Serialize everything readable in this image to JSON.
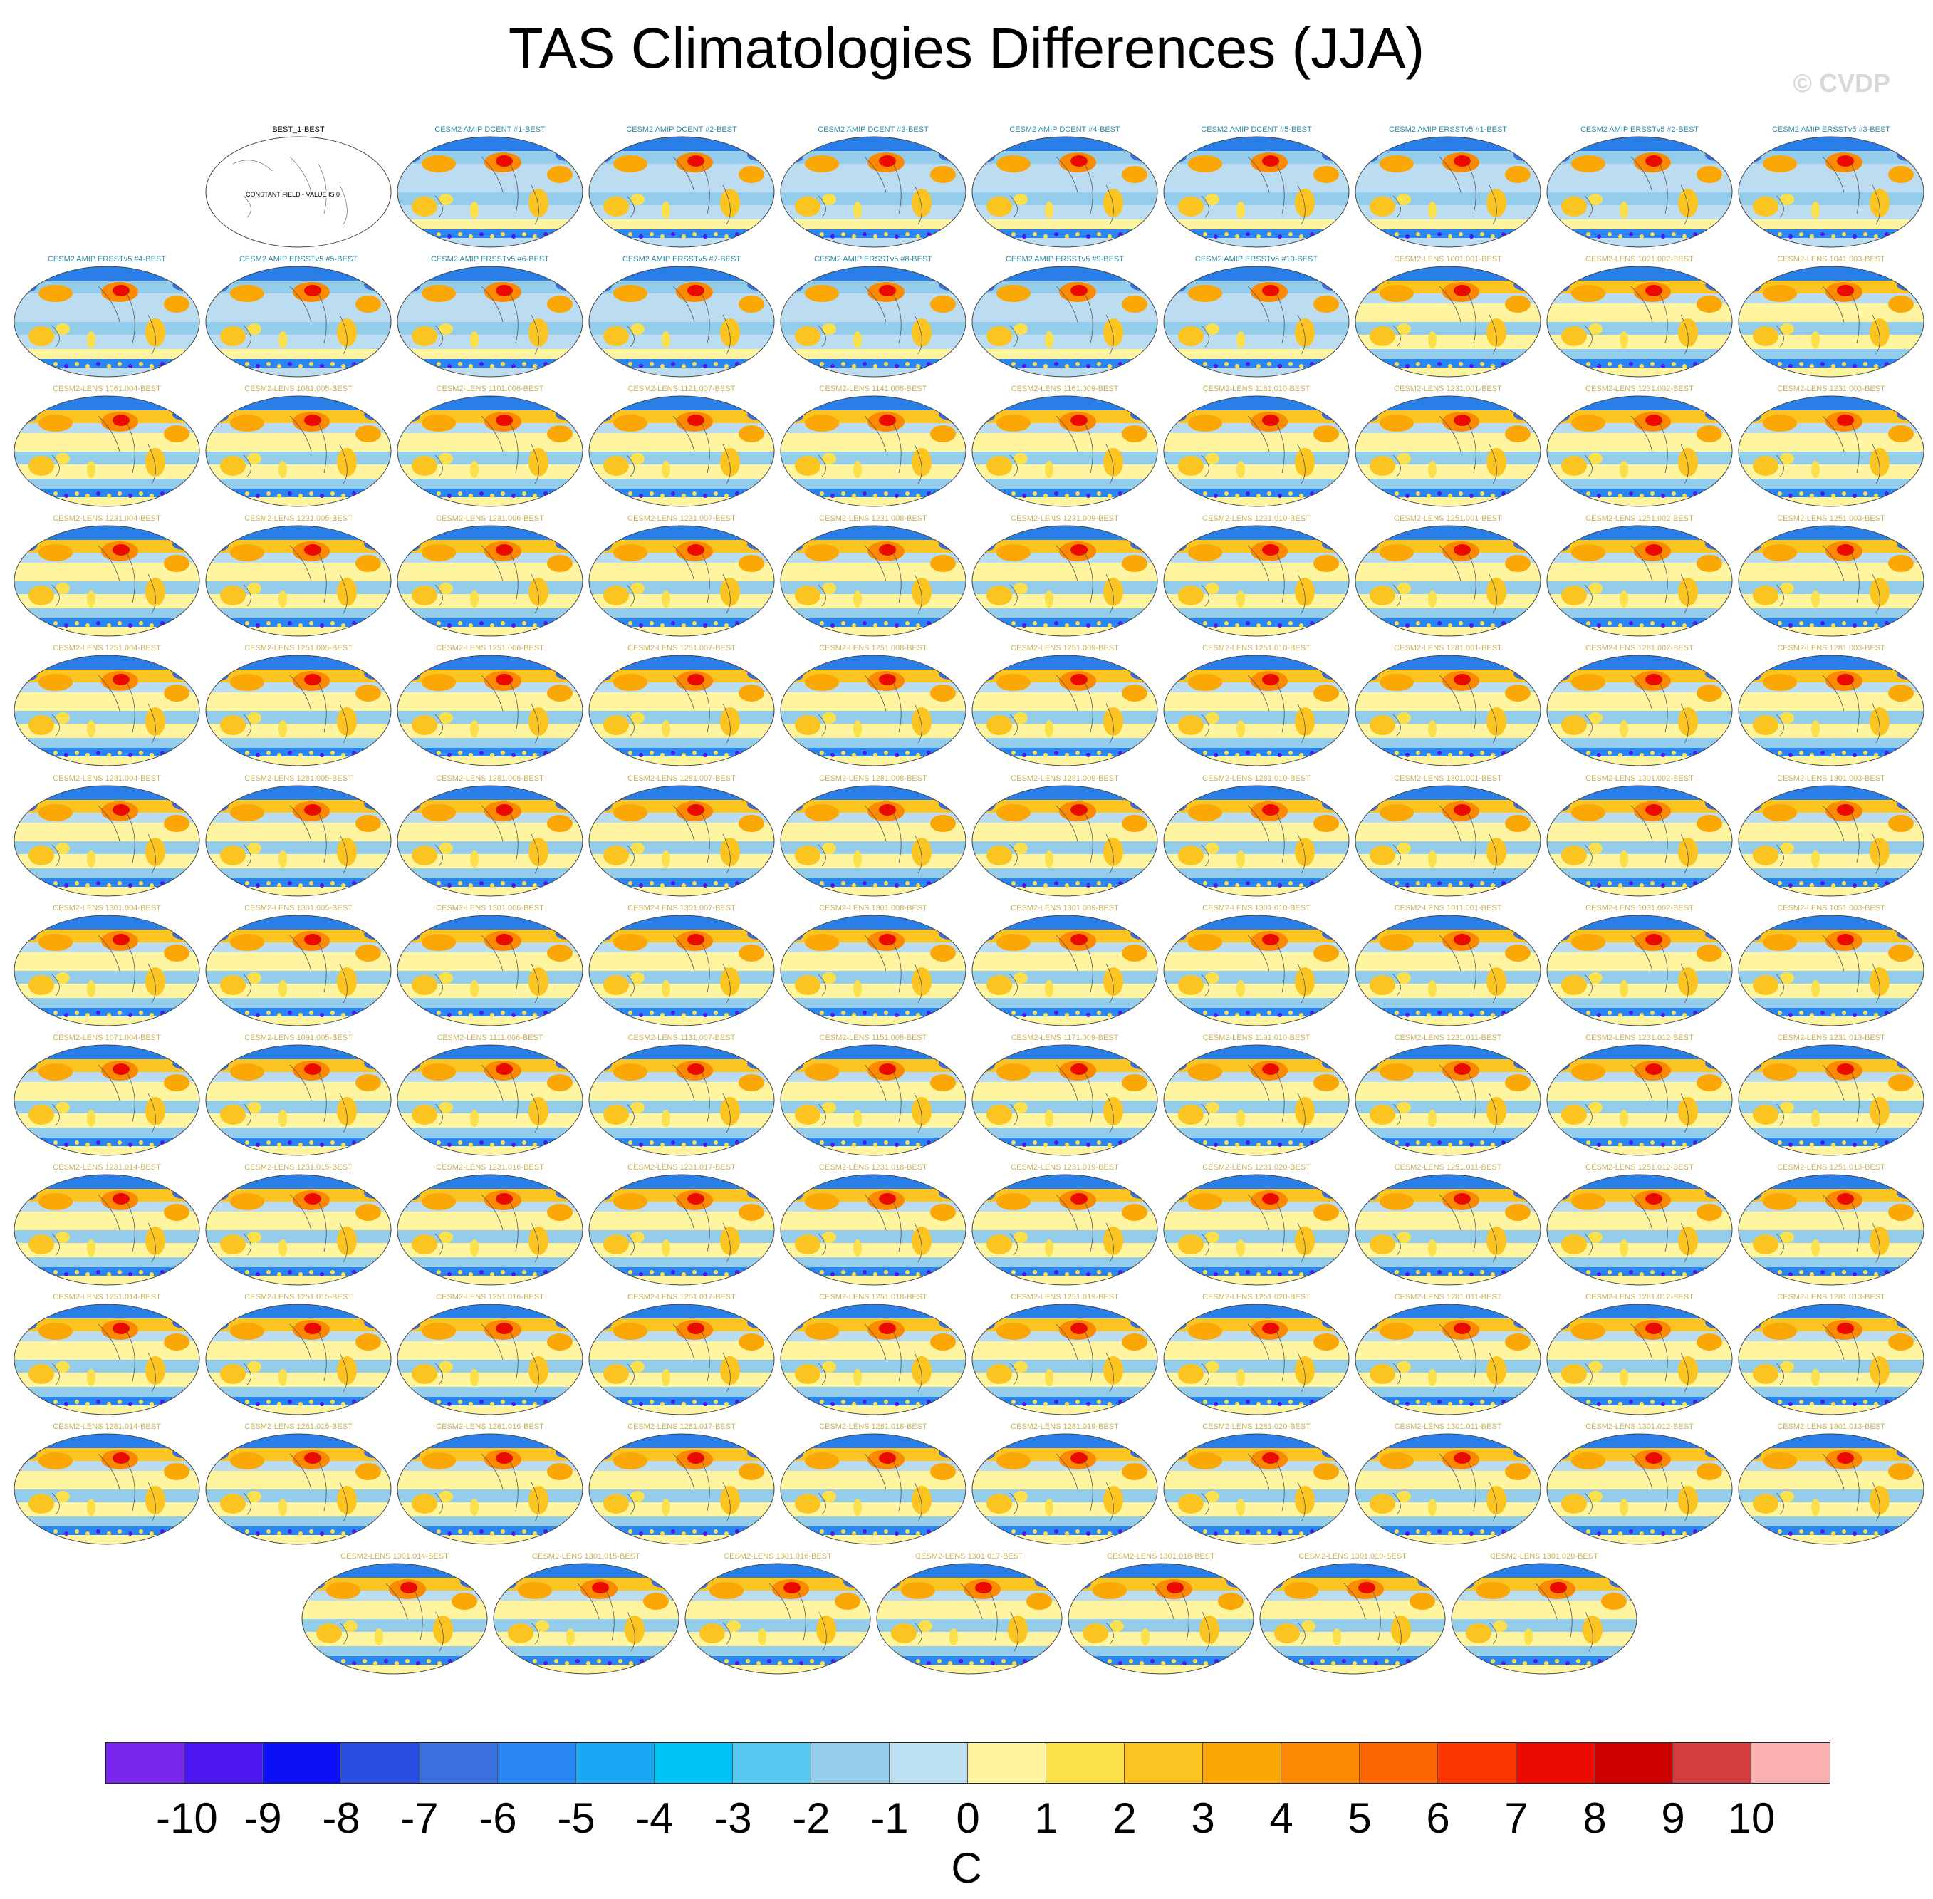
{
  "title": "TAS Climatologies Differences (JJA)",
  "watermark": "© CVDP",
  "reference_panel": {
    "label": "BEST_1-BEST",
    "note": "CONSTANT FIELD - VALUE IS 0"
  },
  "panel_labels": [
    "CESM2 AMIP DCENT #1-BEST",
    "CESM2 AMIP DCENT #2-BEST",
    "CESM2 AMIP DCENT #3-BEST",
    "CESM2 AMIP DCENT #4-BEST",
    "CESM2 AMIP DCENT #5-BEST",
    "CESM2 AMIP ERSSTv5 #1-BEST",
    "CESM2 AMIP ERSSTv5 #2-BEST",
    "CESM2 AMIP ERSSTv5 #3-BEST",
    "CESM2 AMIP ERSSTv5 #4-BEST",
    "CESM2 AMIP ERSSTv5 #5-BEST",
    "CESM2 AMIP ERSSTv5 #6-BEST",
    "CESM2 AMIP ERSSTv5 #7-BEST",
    "CESM2 AMIP ERSSTv5 #8-BEST",
    "CESM2 AMIP ERSSTv5 #9-BEST",
    "CESM2 AMIP ERSSTv5 #10-BEST",
    "CESM2-LENS 1001.001-BEST",
    "CESM2-LENS 1021.002-BEST",
    "CESM2-LENS 1041.003-BEST",
    "CESM2-LENS 1061.004-BEST",
    "CESM2-LENS 1081.005-BEST",
    "CESM2-LENS 1101.006-BEST",
    "CESM2-LENS 1121.007-BEST",
    "CESM2-LENS 1141.008-BEST",
    "CESM2-LENS 1161.009-BEST",
    "CESM2-LENS 1181.010-BEST",
    "CESM2-LENS 1231.001-BEST",
    "CESM2-LENS 1231.002-BEST",
    "CESM2-LENS 1231.003-BEST",
    "CESM2-LENS 1231.004-BEST",
    "CESM2-LENS 1231.005-BEST",
    "CESM2-LENS 1231.006-BEST",
    "CESM2-LENS 1231.007-BEST",
    "CESM2-LENS 1231.008-BEST",
    "CESM2-LENS 1231.009-BEST",
    "CESM2-LENS 1231.010-BEST",
    "CESM2-LENS 1251.001-BEST",
    "CESM2-LENS 1251.002-BEST",
    "CESM2-LENS 1251.003-BEST",
    "CESM2-LENS 1251.004-BEST",
    "CESM2-LENS 1251.005-BEST",
    "CESM2-LENS 1251.006-BEST",
    "CESM2-LENS 1251.007-BEST",
    "CESM2-LENS 1251.008-BEST",
    "CESM2-LENS 1251.009-BEST",
    "CESM2-LENS 1251.010-BEST",
    "CESM2-LENS 1281.001-BEST",
    "CESM2-LENS 1281.002-BEST",
    "CESM2-LENS 1281.003-BEST",
    "CESM2-LENS 1281.004-BEST",
    "CESM2-LENS 1281.005-BEST",
    "CESM2-LENS 1281.006-BEST",
    "CESM2-LENS 1281.007-BEST",
    "CESM2-LENS 1281.008-BEST",
    "CESM2-LENS 1281.009-BEST",
    "CESM2-LENS 1281.010-BEST",
    "CESM2-LENS 1301.001-BEST",
    "CESM2-LENS 1301.002-BEST",
    "CESM2-LENS 1301.003-BEST",
    "CESM2-LENS 1301.004-BEST",
    "CESM2-LENS 1301.005-BEST",
    "CESM2-LENS 1301.006-BEST",
    "CESM2-LENS 1301.007-BEST",
    "CESM2-LENS 1301.008-BEST",
    "CESM2-LENS 1301.009-BEST",
    "CESM2-LENS 1301.010-BEST",
    "CESM2-LENS 1011.001-BEST",
    "CESM2-LENS 1031.002-BEST",
    "CESM2-LENS 1051.003-BEST",
    "CESM2-LENS 1071.004-BEST",
    "CESM2-LENS 1091.005-BEST",
    "CESM2-LENS 1111.006-BEST",
    "CESM2-LENS 1131.007-BEST",
    "CESM2-LENS 1151.008-BEST",
    "CESM2-LENS 1171.009-BEST",
    "CESM2-LENS 1191.010-BEST",
    "CESM2-LENS 1231.011-BEST",
    "CESM2-LENS 1231.012-BEST",
    "CESM2-LENS 1231.013-BEST",
    "CESM2-LENS 1231.014-BEST",
    "CESM2-LENS 1231.015-BEST",
    "CESM2-LENS 1231.016-BEST",
    "CESM2-LENS 1231.017-BEST",
    "CESM2-LENS 1231.018-BEST",
    "CESM2-LENS 1231.019-BEST",
    "CESM2-LENS 1231.020-BEST",
    "CESM2-LENS 1251.011-BEST",
    "CESM2-LENS 1251.012-BEST",
    "CESM2-LENS 1251.013-BEST",
    "CESM2-LENS 1251.014-BEST",
    "CESM2-LENS 1251.015-BEST",
    "CESM2-LENS 1251.016-BEST",
    "CESM2-LENS 1251.017-BEST",
    "CESM2-LENS 1251.018-BEST",
    "CESM2-LENS 1251.019-BEST",
    "CESM2-LENS 1251.020-BEST",
    "CESM2-LENS 1281.011-BEST",
    "CESM2-LENS 1281.012-BEST",
    "CESM2-LENS 1281.013-BEST",
    "CESM2-LENS 1281.014-BEST",
    "CESM2-LENS 1281.015-BEST",
    "CESM2-LENS 1281.016-BEST",
    "CESM2-LENS 1281.017-BEST",
    "CESM2-LENS 1281.018-BEST",
    "CESM2-LENS 1281.019-BEST",
    "CESM2-LENS 1281.020-BEST",
    "CESM2-LENS 1301.011-BEST",
    "CESM2-LENS 1301.012-BEST",
    "CESM2-LENS 1301.013-BEST",
    "CESM2-LENS 1301.014-BEST",
    "CESM2-LENS 1301.015-BEST",
    "CESM2-LENS 1301.016-BEST",
    "CESM2-LENS 1301.017-BEST",
    "CESM2-LENS 1301.018-BEST",
    "CESM2-LENS 1301.019-BEST",
    "CESM2-LENS 1301.020-BEST"
  ],
  "label_colors": {
    "amip": "#2e8ba8",
    "lens": "#c9b25a",
    "reference": "#000000"
  },
  "colorbar": {
    "colors": [
      "#7b26ee",
      "#4d18f0",
      "#0c10f6",
      "#2a4ee2",
      "#3a6fe0",
      "#2a85f5",
      "#19a6f2",
      "#00c4f6",
      "#55c8f0",
      "#93cdeb",
      "#bde0f3",
      "#fff5a0",
      "#fbe04c",
      "#fbc421",
      "#fba705",
      "#fb8a00",
      "#fb6600",
      "#fb3600",
      "#ea0a00",
      "#cc0000",
      "#d43d3d",
      "#fbb0b0"
    ],
    "labels": [
      "-10",
      "-9",
      "-8",
      "-7",
      "-6",
      "-5",
      "-4",
      "-3",
      "-2",
      "-1",
      "0",
      "1",
      "2",
      "3",
      "4",
      "5",
      "6",
      "7",
      "8",
      "9",
      "10"
    ],
    "units": "C"
  }
}
